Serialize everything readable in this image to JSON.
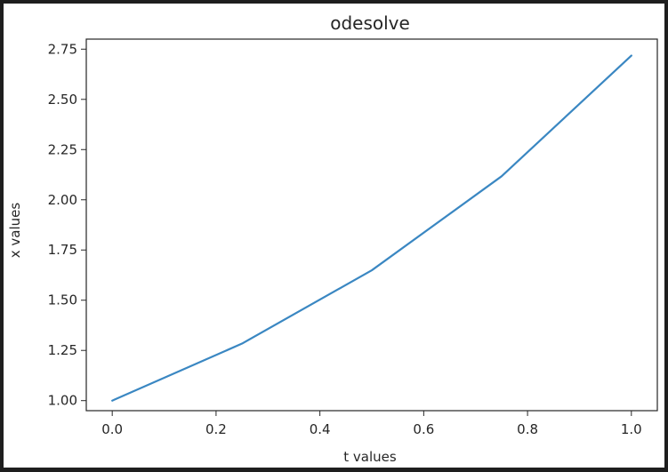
{
  "chart_data": {
    "type": "line",
    "title": "odesolve",
    "xlabel": "t values",
    "ylabel": "x values",
    "xlim": [
      -0.05,
      1.05
    ],
    "ylim": [
      0.95,
      2.8
    ],
    "xticks": [
      0.0,
      0.2,
      0.4,
      0.6,
      0.8,
      1.0
    ],
    "xtick_labels": [
      "0.0",
      "0.2",
      "0.4",
      "0.6",
      "0.8",
      "1.0"
    ],
    "yticks": [
      1.0,
      1.25,
      1.5,
      1.75,
      2.0,
      2.25,
      2.5,
      2.75
    ],
    "ytick_labels": [
      "1.00",
      "1.25",
      "1.50",
      "1.75",
      "2.00",
      "2.25",
      "2.50",
      "2.75"
    ],
    "grid": false,
    "series": [
      {
        "color": "#3a87c2",
        "x": [
          0.0,
          0.25,
          0.5,
          0.75,
          1.0
        ],
        "y": [
          1.0,
          1.284,
          1.649,
          2.117,
          2.718
        ]
      }
    ]
  }
}
